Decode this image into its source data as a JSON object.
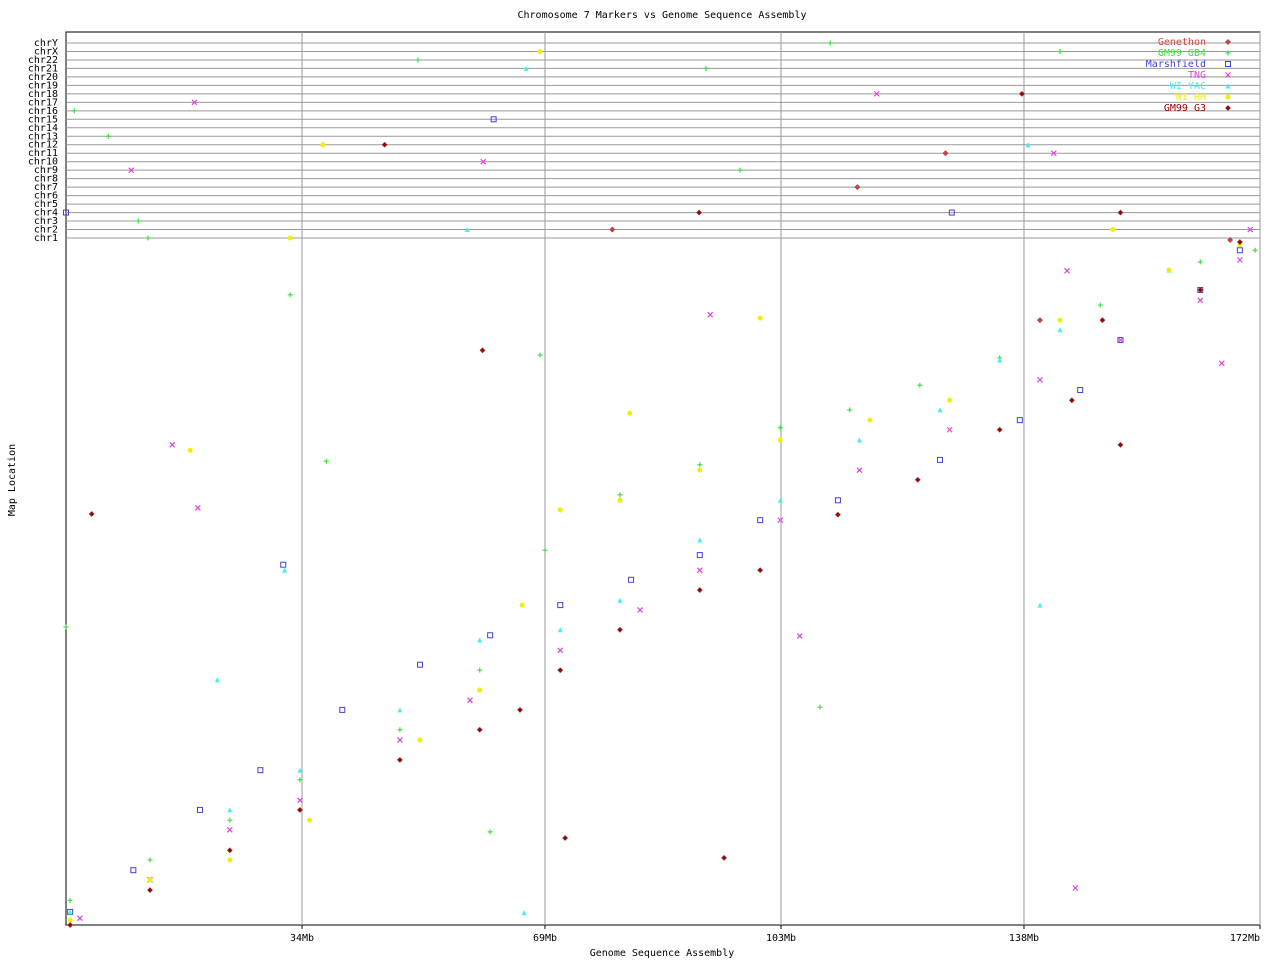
{
  "chart_data": {
    "type": "scatter",
    "title": "Chromosome 7 Markers vs Genome Sequence Assembly",
    "x_label": "Genome Sequence Assembly",
    "y_label": "Map Location",
    "xlim": [
      0,
      172
    ],
    "ylim": [
      0,
      100
    ],
    "xticks": [
      {
        "value": 34,
        "label": "34Mb"
      },
      {
        "value": 69,
        "label": "69Mb"
      },
      {
        "value": 103,
        "label": "103Mb"
      },
      {
        "value": 138,
        "label": "138Mb"
      },
      {
        "value": 172,
        "label": "172Mb"
      }
    ],
    "grid": true,
    "legend": "upper right",
    "chromosomes": [
      "chr1",
      "chr2",
      "chr3",
      "chr4",
      "chr5",
      "chr6",
      "chr7",
      "chr8",
      "chr9",
      "chr10",
      "chr11",
      "chr12",
      "chr13",
      "chr14",
      "chr15",
      "chr16",
      "chr17",
      "chr18",
      "chr19",
      "chr20",
      "chr21",
      "chr22",
      "chrX",
      "chrY"
    ],
    "series": [
      {
        "name": "Genethon",
        "color": "#e04040",
        "marker": "diamond",
        "x": [
          167.7,
          140.3
        ],
        "y": [
          100.0,
          88.3
        ],
        "off_x": [
          78.7,
          126.7,
          114.0
        ],
        "off_chr": [
          "chr2",
          "chr11",
          "chr7"
        ]
      },
      {
        "name": "GM99 GB4",
        "color": "#40e040",
        "marker": "plus",
        "x": [
          0.58,
          12.1,
          23.6,
          33.7,
          48.1,
          59.6,
          69.0,
          71.2,
          79.8,
          91.3,
          102.9,
          112.9,
          123.0,
          134.5,
          149.0,
          163.4,
          171.3,
          32.3,
          68.3,
          37.5,
          0.0,
          108.6,
          61.1
        ],
        "y": [
          3.6,
          9.5,
          15.3,
          21.2,
          28.5,
          37.2,
          54.7,
          60.6,
          62.8,
          67.2,
          72.6,
          75.2,
          78.8,
          82.8,
          90.5,
          96.8,
          98.5,
          92.0,
          83.2,
          67.7,
          43.5,
          31.8,
          13.6
        ],
        "off_x": [
          1.2,
          6.1,
          11.8,
          50.7,
          68.3,
          92.2,
          110.1,
          143.2,
          10.4,
          97.1
        ],
        "off_chr": [
          "chr16",
          "chr13",
          "chr1",
          "chr22",
          "chrX",
          "chr21",
          "chrY",
          "chrX",
          "chr3",
          "chr9"
        ]
      },
      {
        "name": "Marshfield",
        "color": "#4040e0",
        "marker": "square",
        "x": [
          0.6,
          9.7,
          19.3,
          28.0,
          39.8,
          51.0,
          61.1,
          71.2,
          81.4,
          91.3,
          100.0,
          111.2,
          125.9,
          137.4,
          146.1,
          151.9,
          163.4,
          169.1,
          31.3
        ],
        "y": [
          1.9,
          8.0,
          16.8,
          22.6,
          31.4,
          38.0,
          42.3,
          46.7,
          50.4,
          54.0,
          59.1,
          62.0,
          67.9,
          73.7,
          78.1,
          85.4,
          92.7,
          98.5,
          52.6
        ],
        "off_x": [
          61.6,
          127.6,
          0.0
        ],
        "off_chr": [
          "chr15",
          "chr4",
          "chr4"
        ]
      },
      {
        "name": "TNG",
        "color": "#e040e0",
        "marker": "x",
        "x": [
          2.0,
          12.1,
          23.6,
          33.7,
          48.1,
          58.2,
          71.2,
          82.7,
          91.3,
          102.9,
          114.3,
          127.3,
          140.3,
          151.9,
          163.4,
          169.1,
          15.3,
          19.0,
          92.8,
          144.2,
          145.4,
          105.7,
          166.5
        ],
        "y": [
          1.0,
          6.6,
          13.9,
          18.2,
          27.0,
          32.8,
          40.1,
          46.0,
          51.8,
          59.1,
          66.4,
          72.3,
          79.6,
          85.4,
          91.2,
          97.1,
          70.1,
          60.9,
          89.1,
          95.5,
          5.4,
          42.2,
          82.0
        ],
        "off_x": [
          18.5,
          9.4,
          60.1,
          116.8,
          142.3,
          170.6
        ],
        "off_chr": [
          "chr17",
          "chr9",
          "chr10",
          "chr18",
          "chr11",
          "chr2"
        ]
      },
      {
        "name": "WI YAC",
        "color": "#40f0f0",
        "marker": "triangle",
        "x": [
          0.6,
          12.1,
          23.6,
          33.7,
          48.1,
          59.6,
          71.2,
          79.8,
          91.3,
          102.9,
          114.3,
          125.9,
          134.5,
          143.2,
          158.9,
          169.1,
          31.5,
          66.0,
          140.3,
          21.8
        ],
        "y": [
          1.9,
          6.6,
          16.8,
          22.6,
          31.4,
          41.6,
          43.1,
          47.4,
          56.2,
          62.0,
          70.8,
          75.2,
          82.5,
          86.9,
          95.6,
          99.3,
          51.8,
          1.8,
          46.7,
          35.8
        ],
        "off_x": [
          66.3,
          138.6,
          57.8
        ],
        "off_chr": [
          "chr21",
          "chr12",
          "chr2"
        ]
      },
      {
        "name": "WI RH",
        "color": "#f0f000",
        "marker": "circle",
        "x": [
          0.6,
          12.1,
          23.6,
          35.1,
          51.0,
          59.6,
          65.7,
          71.2,
          79.8,
          91.3,
          102.9,
          115.8,
          127.3,
          143.2,
          158.9,
          169.1,
          100.0,
          17.9,
          81.2
        ],
        "y": [
          0.7,
          6.6,
          9.5,
          15.3,
          27.0,
          34.3,
          46.7,
          60.6,
          62.0,
          66.4,
          70.8,
          73.7,
          76.6,
          88.3,
          95.6,
          99.3,
          88.6,
          69.3,
          74.7
        ],
        "off_x": [
          32.3,
          37.0,
          68.3,
          150.8
        ],
        "off_chr": [
          "chr1",
          "chr12",
          "chrX",
          "chr2"
        ]
      },
      {
        "name": "GM99 G3",
        "color": "#a00000",
        "marker": "diamond",
        "x": [
          0.6,
          12.1,
          23.6,
          33.7,
          48.1,
          59.6,
          65.4,
          71.2,
          79.8,
          91.3,
          100.0,
          111.2,
          122.7,
          134.5,
          144.9,
          149.3,
          163.4,
          169.1,
          3.7,
          60.0,
          151.9,
          94.8,
          71.9
        ],
        "y": [
          0.0,
          5.1,
          10.9,
          16.8,
          24.1,
          28.5,
          31.4,
          37.2,
          43.1,
          48.9,
          51.8,
          59.9,
          65.0,
          72.3,
          76.6,
          88.3,
          92.7,
          99.7,
          60.0,
          83.9,
          70.1,
          9.8,
          12.7
        ],
        "off_x": [
          45.9,
          91.2,
          137.7,
          151.9
        ],
        "off_chr": [
          "chr12",
          "chr4",
          "chr18",
          "chr4"
        ]
      }
    ]
  }
}
